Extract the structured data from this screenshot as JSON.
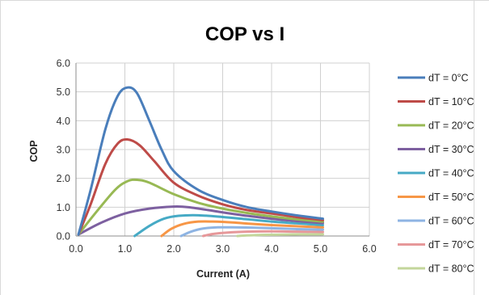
{
  "chart_data": {
    "type": "line",
    "title": "COP vs I",
    "xlabel": "Current (A)",
    "ylabel": "COP",
    "xlim": [
      0.0,
      6.0
    ],
    "ylim": [
      0.0,
      6.0
    ],
    "x_ticks": [
      "0.0",
      "1.0",
      "2.0",
      "3.0",
      "4.0",
      "5.0",
      "6.0"
    ],
    "y_ticks": [
      "0.0",
      "1.0",
      "2.0",
      "3.0",
      "4.0",
      "5.0",
      "6.0"
    ],
    "grid": true,
    "legend_position": "right",
    "series": [
      {
        "name": "dT = 0°C",
        "color": "#4a7ebb",
        "points": [
          [
            0.05,
            0.05
          ],
          [
            0.3,
            1.6
          ],
          [
            0.6,
            3.7
          ],
          [
            0.85,
            4.85
          ],
          [
            1.05,
            5.15
          ],
          [
            1.25,
            4.95
          ],
          [
            1.5,
            4.0
          ],
          [
            1.75,
            3.0
          ],
          [
            2.0,
            2.25
          ],
          [
            2.5,
            1.6
          ],
          [
            3.0,
            1.25
          ],
          [
            3.5,
            1.0
          ],
          [
            4.0,
            0.85
          ],
          [
            4.5,
            0.72
          ],
          [
            5.05,
            0.6
          ]
        ]
      },
      {
        "name": "dT = 10°C",
        "color": "#be4b48",
        "points": [
          [
            0.05,
            0.05
          ],
          [
            0.3,
            1.1
          ],
          [
            0.6,
            2.5
          ],
          [
            0.85,
            3.2
          ],
          [
            1.05,
            3.35
          ],
          [
            1.3,
            3.15
          ],
          [
            1.6,
            2.6
          ],
          [
            2.0,
            1.85
          ],
          [
            2.5,
            1.4
          ],
          [
            3.0,
            1.1
          ],
          [
            3.5,
            0.9
          ],
          [
            4.0,
            0.78
          ],
          [
            4.5,
            0.66
          ],
          [
            5.05,
            0.55
          ]
        ]
      },
      {
        "name": "dT = 20°C",
        "color": "#98b954",
        "points": [
          [
            0.05,
            0.05
          ],
          [
            0.4,
            0.8
          ],
          [
            0.8,
            1.6
          ],
          [
            1.05,
            1.9
          ],
          [
            1.25,
            1.95
          ],
          [
            1.5,
            1.85
          ],
          [
            2.0,
            1.45
          ],
          [
            2.5,
            1.15
          ],
          [
            3.0,
            0.95
          ],
          [
            3.5,
            0.8
          ],
          [
            4.0,
            0.68
          ],
          [
            4.5,
            0.58
          ],
          [
            5.05,
            0.5
          ]
        ]
      },
      {
        "name": "dT = 30°C",
        "color": "#7d60a0",
        "points": [
          [
            0.05,
            0.05
          ],
          [
            0.5,
            0.45
          ],
          [
            1.0,
            0.78
          ],
          [
            1.5,
            0.95
          ],
          [
            2.0,
            1.02
          ],
          [
            2.3,
            1.0
          ],
          [
            2.7,
            0.9
          ],
          [
            3.0,
            0.82
          ],
          [
            3.5,
            0.7
          ],
          [
            4.0,
            0.6
          ],
          [
            4.5,
            0.52
          ],
          [
            5.05,
            0.45
          ]
        ]
      },
      {
        "name": "dT = 40°C",
        "color": "#46aac5",
        "points": [
          [
            1.2,
            0.0
          ],
          [
            1.5,
            0.35
          ],
          [
            1.8,
            0.6
          ],
          [
            2.1,
            0.7
          ],
          [
            2.5,
            0.72
          ],
          [
            3.0,
            0.66
          ],
          [
            3.5,
            0.58
          ],
          [
            4.0,
            0.5
          ],
          [
            4.5,
            0.44
          ],
          [
            5.05,
            0.38
          ]
        ]
      },
      {
        "name": "dT = 50°C",
        "color": "#f79646",
        "points": [
          [
            1.75,
            0.0
          ],
          [
            1.95,
            0.25
          ],
          [
            2.2,
            0.42
          ],
          [
            2.5,
            0.5
          ],
          [
            2.8,
            0.5
          ],
          [
            3.2,
            0.47
          ],
          [
            3.6,
            0.42
          ],
          [
            4.0,
            0.38
          ],
          [
            4.5,
            0.34
          ],
          [
            5.05,
            0.3
          ]
        ]
      },
      {
        "name": "dT = 60°C",
        "color": "#8eb4e3",
        "points": [
          [
            2.15,
            0.0
          ],
          [
            2.35,
            0.15
          ],
          [
            2.6,
            0.26
          ],
          [
            2.9,
            0.3
          ],
          [
            3.2,
            0.3
          ],
          [
            3.6,
            0.29
          ],
          [
            4.0,
            0.27
          ],
          [
            4.5,
            0.24
          ],
          [
            5.05,
            0.22
          ]
        ]
      },
      {
        "name": "dT = 70°C",
        "color": "#e6989a",
        "points": [
          [
            2.6,
            0.0
          ],
          [
            2.8,
            0.07
          ],
          [
            3.1,
            0.12
          ],
          [
            3.5,
            0.15
          ],
          [
            4.0,
            0.16
          ],
          [
            4.5,
            0.15
          ],
          [
            5.05,
            0.14
          ]
        ]
      },
      {
        "name": "dT = 80°C",
        "color": "#c3d69b",
        "points": [
          [
            3.3,
            0.0
          ],
          [
            3.5,
            0.02
          ],
          [
            3.8,
            0.04
          ],
          [
            4.2,
            0.05
          ],
          [
            4.6,
            0.06
          ],
          [
            5.05,
            0.06
          ]
        ]
      }
    ]
  }
}
